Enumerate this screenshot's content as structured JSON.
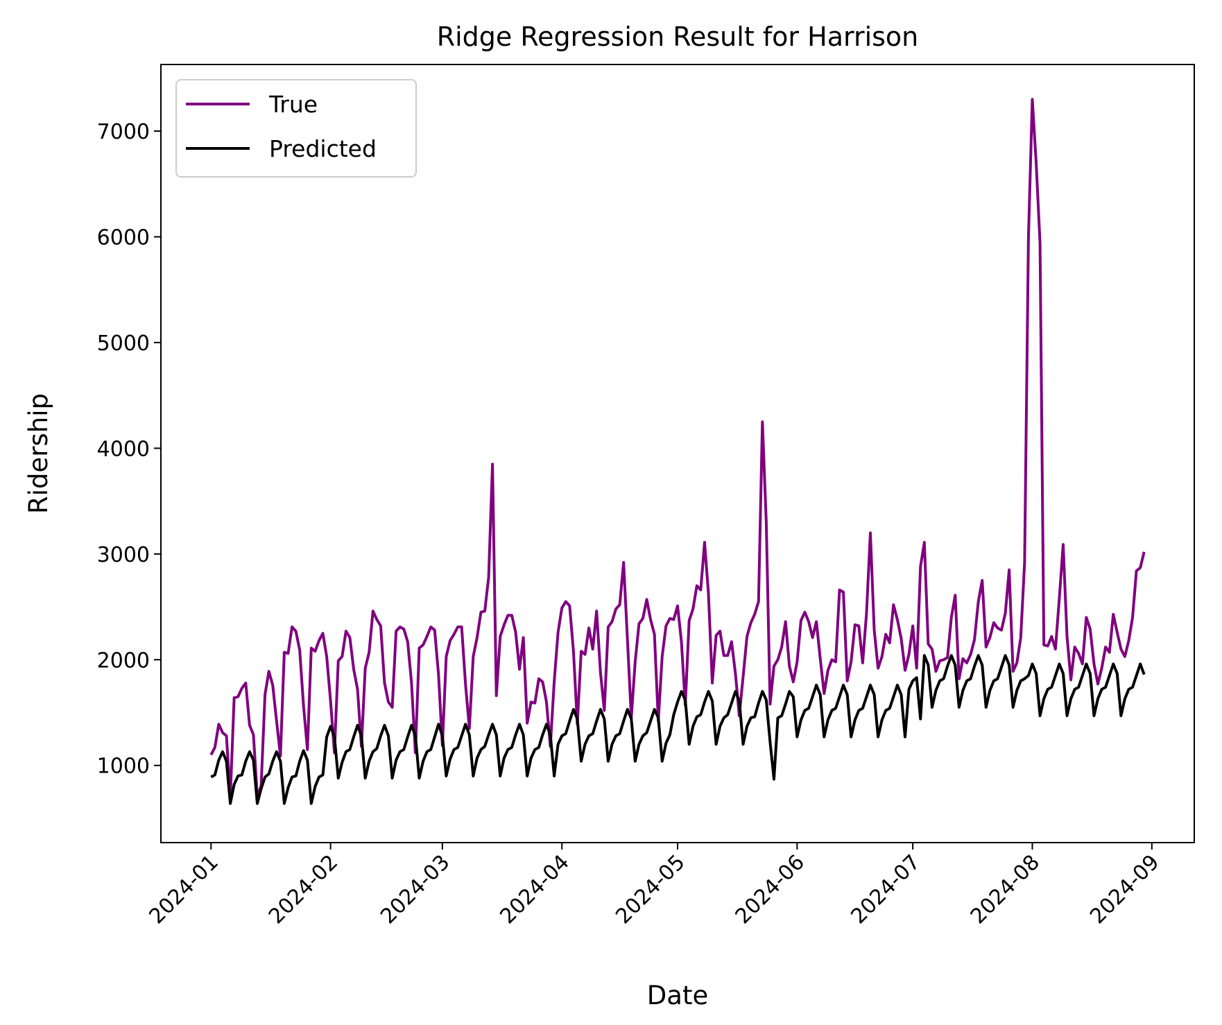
{
  "chart_data": {
    "type": "line",
    "title": "Ridge Regression Result for Harrison",
    "xlabel": "Date",
    "ylabel": "Ridership",
    "x_start": "2024-01-01",
    "x_end": "2024-08-31",
    "xlim": [
      "2023-12-19",
      "2024-09-12"
    ],
    "ylim": [
      270,
      7630
    ],
    "x_ticks": [
      "2024-01",
      "2024-02",
      "2024-03",
      "2024-04",
      "2024-05",
      "2024-06",
      "2024-07",
      "2024-08",
      "2024-09"
    ],
    "y_ticks": [
      1000,
      2000,
      3000,
      4000,
      5000,
      6000,
      7000
    ],
    "grid": false,
    "legend": "upper left",
    "series": [
      {
        "name": "True",
        "color": "#800080",
        "values": [
          1100,
          1170,
          1390,
          1310,
          1280,
          700,
          1640,
          1650,
          1730,
          1780,
          1380,
          1290,
          700,
          810,
          1670,
          1890,
          1760,
          1420,
          1090,
          2070,
          2060,
          2310,
          2270,
          2090,
          1560,
          1150,
          2110,
          2080,
          2180,
          2250,
          2030,
          1610,
          1120,
          1990,
          2030,
          2270,
          2210,
          1910,
          1720,
          1180,
          1920,
          2070,
          2460,
          2380,
          2320,
          1780,
          1600,
          1550,
          2270,
          2310,
          2290,
          2170,
          1780,
          1120,
          2110,
          2140,
          2220,
          2310,
          2280,
          1860,
          1190,
          2030,
          2180,
          2240,
          2310,
          2310,
          1770,
          1350,
          2030,
          2210,
          2450,
          2460,
          2780,
          3850,
          1660,
          2220,
          2330,
          2420,
          2420,
          2260,
          1910,
          2210,
          1400,
          1600,
          1590,
          1820,
          1790,
          1600,
          1180,
          1790,
          2260,
          2490,
          2550,
          2510,
          2080,
          1390,
          2080,
          2050,
          2300,
          2100,
          2460,
          1880,
          1520,
          2310,
          2360,
          2480,
          2520,
          2920,
          2190,
          1450,
          1980,
          2340,
          2390,
          2570,
          2380,
          2240,
          1420,
          2030,
          2320,
          2390,
          2380,
          2510,
          2170,
          1570,
          2370,
          2480,
          2700,
          2660,
          3110,
          2630,
          1780,
          2230,
          2270,
          2040,
          2040,
          2170,
          1870,
          1470,
          1840,
          2220,
          2350,
          2430,
          2550,
          4250,
          3300,
          1580,
          1940,
          2000,
          2120,
          2360,
          1940,
          1790,
          1980,
          2370,
          2450,
          2360,
          2210,
          2360,
          2010,
          1680,
          1900,
          2000,
          1980,
          2660,
          2640,
          1800,
          1980,
          2330,
          2320,
          1970,
          2440,
          3200,
          2280,
          1920,
          2030,
          2240,
          2160,
          2520,
          2380,
          2200,
          1900,
          2050,
          2320,
          1920,
          2880,
          3110,
          2150,
          2100,
          1890,
          1990,
          2000,
          2020,
          2400,
          2610,
          1820,
          2010,
          1970,
          2050,
          2190,
          2550,
          2750,
          2120,
          2210,
          2350,
          2300,
          2280,
          2440,
          2850,
          1890,
          1970,
          2210,
          2920,
          6000,
          7300,
          6700,
          5940,
          2140,
          2130,
          2220,
          2100,
          2580,
          3090,
          2220,
          1810,
          2120,
          2060,
          1960,
          2400,
          2290,
          1960,
          1770,
          1920,
          2120,
          2070,
          2430,
          2260,
          2100,
          2030,
          2180,
          2400,
          2840,
          2870,
          3020
        ]
      },
      {
        "name": "Predicted",
        "color": "#000000",
        "values": [
          890,
          910,
          1050,
          1130,
          1040,
          640,
          820,
          900,
          910,
          1040,
          1130,
          1050,
          640,
          780,
          890,
          920,
          1040,
          1130,
          1040,
          640,
          790,
          890,
          900,
          1040,
          1140,
          1050,
          640,
          800,
          890,
          910,
          1270,
          1370,
          1270,
          880,
          1030,
          1130,
          1150,
          1270,
          1380,
          1280,
          880,
          1040,
          1130,
          1160,
          1280,
          1380,
          1280,
          880,
          1050,
          1130,
          1150,
          1270,
          1380,
          1280,
          880,
          1040,
          1130,
          1150,
          1270,
          1390,
          1280,
          900,
          1060,
          1150,
          1170,
          1280,
          1390,
          1290,
          900,
          1070,
          1150,
          1180,
          1290,
          1390,
          1290,
          900,
          1070,
          1150,
          1170,
          1290,
          1390,
          1290,
          900,
          1070,
          1150,
          1170,
          1290,
          1390,
          1290,
          900,
          1200,
          1280,
          1300,
          1420,
          1530,
          1440,
          1040,
          1200,
          1280,
          1300,
          1420,
          1530,
          1440,
          1040,
          1200,
          1280,
          1300,
          1420,
          1530,
          1440,
          1040,
          1200,
          1280,
          1310,
          1420,
          1530,
          1450,
          1040,
          1210,
          1290,
          1480,
          1600,
          1700,
          1620,
          1200,
          1370,
          1460,
          1480,
          1600,
          1700,
          1610,
          1200,
          1370,
          1450,
          1480,
          1590,
          1700,
          1610,
          1200,
          1370,
          1450,
          1460,
          1590,
          1700,
          1620,
          1220,
          870,
          1450,
          1470,
          1580,
          1700,
          1650,
          1270,
          1430,
          1520,
          1540,
          1650,
          1760,
          1670,
          1270,
          1430,
          1520,
          1540,
          1650,
          1760,
          1670,
          1270,
          1430,
          1520,
          1540,
          1650,
          1760,
          1670,
          1270,
          1430,
          1520,
          1540,
          1650,
          1760,
          1670,
          1270,
          1720,
          1800,
          1830,
          1440,
          2040,
          1950,
          1550,
          1710,
          1800,
          1820,
          1940,
          2040,
          1950,
          1550,
          1710,
          1800,
          1820,
          1940,
          2040,
          1950,
          1550,
          1710,
          1800,
          1820,
          1930,
          2040,
          1950,
          1550,
          1710,
          1800,
          1820,
          1850,
          1960,
          1870,
          1470,
          1630,
          1720,
          1740,
          1850,
          1960,
          1870,
          1470,
          1630,
          1720,
          1740,
          1850,
          1960,
          1870,
          1470,
          1630,
          1720,
          1740,
          1850,
          1960,
          1870,
          1470,
          1630,
          1720,
          1740,
          1850,
          1960,
          1860
        ]
      }
    ]
  }
}
